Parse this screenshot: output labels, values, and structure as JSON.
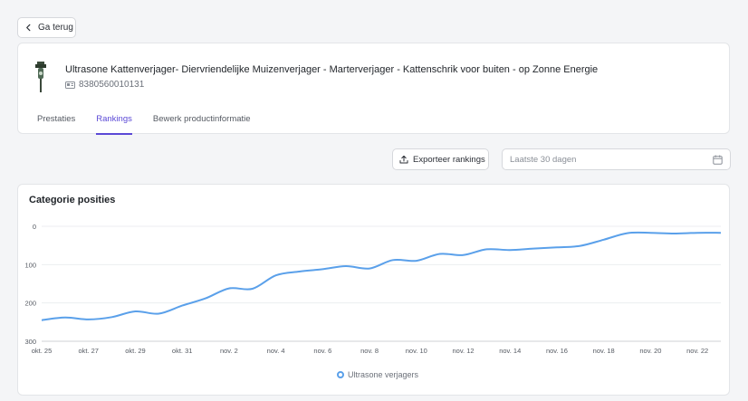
{
  "header": {
    "back_label": "Ga terug"
  },
  "product": {
    "title": "Ultrasone Kattenverjager- Diervriendelijke Muizenverjager - Marterverjager - Kattenschrik voor buiten - op Zonne Energie",
    "ean": "8380560010131"
  },
  "tabs": [
    {
      "label": "Prestaties",
      "active": false
    },
    {
      "label": "Rankings",
      "active": true
    },
    {
      "label": "Bewerk productinformatie",
      "active": false
    }
  ],
  "toolbar": {
    "export_label": "Exporteer rankings",
    "date_placeholder": "Laatste 30 dagen"
  },
  "colors": {
    "accent": "#5b49d6",
    "series": "#5aa0ea"
  },
  "chart": {
    "title": "Categorie posities",
    "legend_label": "Ultrasone verjagers"
  },
  "chart_data": {
    "type": "line",
    "title": "Categorie posities",
    "y_inverted": true,
    "ylim": [
      0,
      300
    ],
    "y_ticks": [
      "0",
      "100",
      "200",
      "300"
    ],
    "x_tick_labels": [
      "okt. 25",
      "okt. 27",
      "okt. 29",
      "okt. 31",
      "nov. 2",
      "nov. 4",
      "nov. 6",
      "nov. 8",
      "nov. 10",
      "nov. 12",
      "nov. 14",
      "nov. 16",
      "nov. 18",
      "nov. 20",
      "nov. 22"
    ],
    "grid": true,
    "legend_position": "bottom",
    "series": [
      {
        "name": "Ultrasone verjagers",
        "x": [
          "okt. 25",
          "okt. 26",
          "okt. 27",
          "okt. 28",
          "okt. 29",
          "okt. 30",
          "okt. 31",
          "nov. 1",
          "nov. 2",
          "nov. 3",
          "nov. 4",
          "nov. 5",
          "nov. 6",
          "nov. 7",
          "nov. 8",
          "nov. 9",
          "nov. 10",
          "nov. 11",
          "nov. 12",
          "nov. 13",
          "nov. 14",
          "nov. 15",
          "nov. 16",
          "nov. 17",
          "nov. 18",
          "nov. 19",
          "nov. 20",
          "nov. 21",
          "nov. 22",
          "nov. 23"
        ],
        "values": [
          245,
          238,
          243,
          237,
          222,
          228,
          207,
          188,
          162,
          163,
          128,
          118,
          112,
          104,
          110,
          88,
          90,
          72,
          75,
          60,
          62,
          58,
          55,
          51,
          35,
          18,
          17,
          19,
          17,
          17
        ]
      }
    ]
  }
}
